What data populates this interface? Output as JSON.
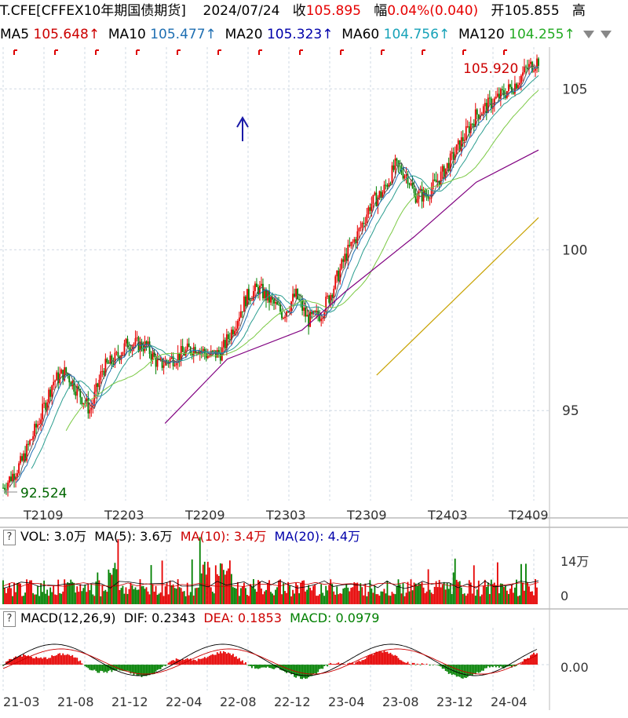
{
  "header": {
    "symbol": "T.CFE[CFFEX10年期国债期货]",
    "date": "2024/07/24",
    "close_label": "收",
    "close": "105.895",
    "change_label": "幅",
    "change": "0.04%(0.040)",
    "open_label": "开",
    "open": "105.855",
    "high_label": "高"
  },
  "ma_legend": [
    {
      "label": "MA5",
      "value": "105.648↑",
      "color": "#cc0000"
    },
    {
      "label": "MA10",
      "value": "105.477↑",
      "color": "#1f6fb2"
    },
    {
      "label": "MA20",
      "value": "105.323↑",
      "color": "#0000aa"
    },
    {
      "label": "MA60",
      "value": "104.756↑",
      "color": "#17a2b8"
    },
    {
      "label": "MA120",
      "value": "104.255↑",
      "color": "#22aa22"
    }
  ],
  "colors": {
    "up": "#e60000",
    "down": "#008000",
    "ma5": "#cc0000",
    "ma10": "#1f6fb2",
    "ma20": "#2a9d8f",
    "ma60": "#7ac943",
    "ma120": "#800080",
    "ma250": "#c8a200",
    "grid": "#cfd8e3"
  },
  "chart_data": [
    {
      "type": "candlestick",
      "x_labels": [
        "T2109",
        "T2203",
        "T2209",
        "T2303",
        "T2309",
        "T2403",
        "T2409"
      ],
      "y_ticks": [
        "95",
        "100",
        "105"
      ],
      "ylim": [
        92.2,
        106.3
      ],
      "annotations": {
        "max": "105.920",
        "min": "92.524"
      },
      "close_path": [
        [
          0,
          92.6
        ],
        [
          3,
          93.4
        ],
        [
          6,
          94.8
        ],
        [
          8,
          95.9
        ],
        [
          10,
          96.2
        ],
        [
          12,
          95.6
        ],
        [
          14,
          95.0
        ],
        [
          16,
          96.3
        ],
        [
          18,
          96.6
        ],
        [
          20,
          97.1
        ],
        [
          23,
          97.0
        ],
        [
          25,
          96.4
        ],
        [
          27,
          96.6
        ],
        [
          29,
          96.8
        ],
        [
          31,
          97.0
        ],
        [
          33,
          96.7
        ],
        [
          35,
          96.8
        ],
        [
          37,
          97.6
        ],
        [
          39,
          98.5
        ],
        [
          41,
          98.8
        ],
        [
          43,
          98.4
        ],
        [
          45,
          98.0
        ],
        [
          47,
          98.6
        ],
        [
          49,
          97.8
        ],
        [
          51,
          98.0
        ],
        [
          53,
          98.8
        ],
        [
          55,
          99.8
        ],
        [
          57,
          100.5
        ],
        [
          59,
          101.4
        ],
        [
          61,
          101.8
        ],
        [
          63,
          102.6
        ],
        [
          65,
          102.3
        ],
        [
          66,
          101.7
        ],
        [
          68,
          101.7
        ],
        [
          70,
          102.2
        ],
        [
          72,
          102.8
        ],
        [
          74,
          103.5
        ],
        [
          76,
          104.2
        ],
        [
          78,
          104.5
        ],
        [
          80,
          104.8
        ],
        [
          82,
          105.1
        ],
        [
          84,
          105.6
        ],
        [
          86,
          105.9
        ]
      ],
      "ma250": [
        [
          60,
          96.1
        ],
        [
          86,
          101.0
        ]
      ],
      "ma120_line": [
        [
          26,
          94.6
        ],
        [
          36,
          96.6
        ],
        [
          48,
          97.5
        ],
        [
          55,
          98.7
        ],
        [
          66,
          100.4
        ],
        [
          76,
          102.1
        ],
        [
          86,
          103.1
        ]
      ]
    },
    {
      "type": "bar",
      "title": "VOL: 3.0万",
      "legend": [
        {
          "name": "MA(5): 3.6万",
          "color": "#000"
        },
        {
          "name": "MA(10): 3.4万",
          "color": "#cc0000"
        },
        {
          "name": "MA(20): 4.4万",
          "color": "#0000aa"
        }
      ],
      "y_ticks": [
        "14万",
        "0"
      ]
    },
    {
      "type": "bar",
      "title": "MACD(12,26,9)",
      "legend": [
        {
          "name": "DIF: 0.2343",
          "color": "#000"
        },
        {
          "name": "DEA: 0.1853",
          "color": "#cc0000"
        },
        {
          "name": "MACD: 0.0979",
          "color": "#008000"
        }
      ],
      "y_ticks": [
        "0.00"
      ],
      "x_labels": [
        "21-03",
        "21-08",
        "21-12",
        "22-04",
        "22-08",
        "22-12",
        "23-04",
        "23-08",
        "23-12",
        "24-04"
      ]
    }
  ]
}
